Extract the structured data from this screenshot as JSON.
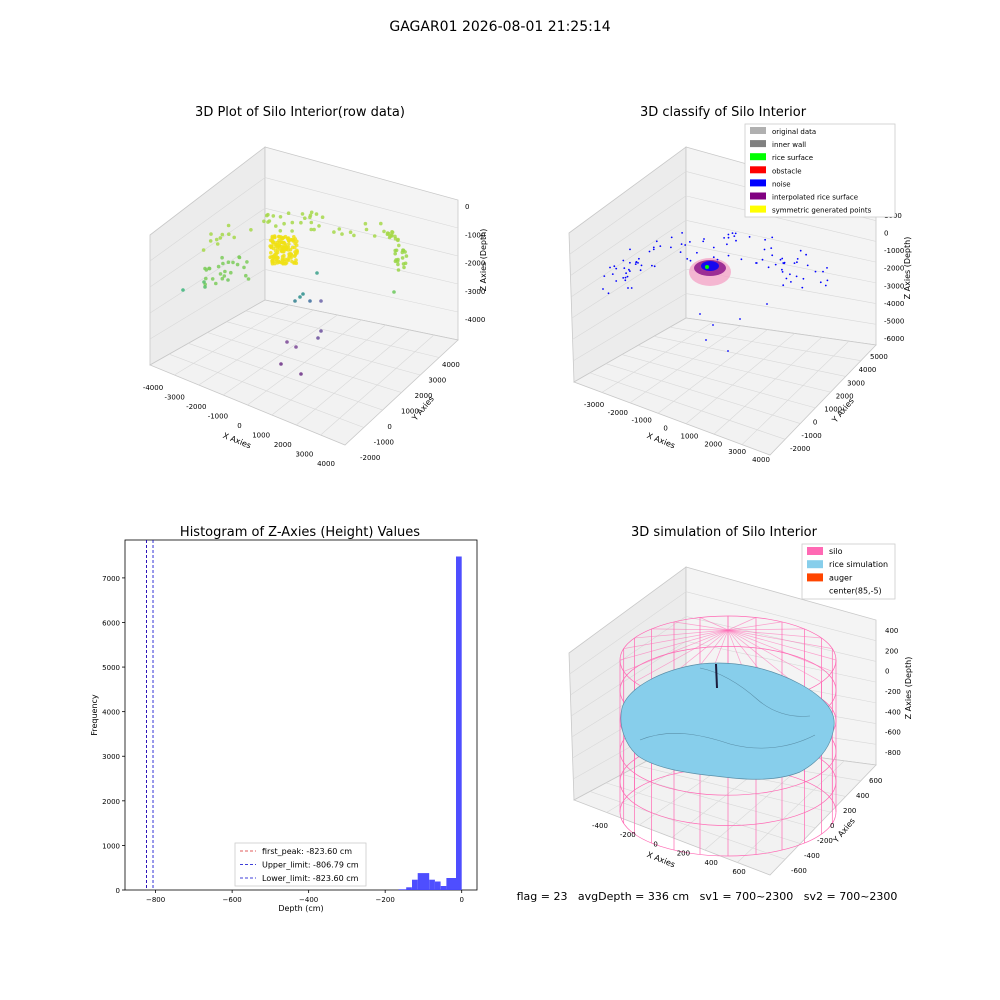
{
  "figure": {
    "suptitle": "GAGAR01 2026-08-01 21:25:14"
  },
  "chart_data": [
    {
      "type": "scatter3d",
      "title": "3D Plot of Silo Interior(row data)",
      "xlabel": "X Axies",
      "ylabel": "Y Axies",
      "zlabel": "Z Axies (Depth)",
      "xlim": [
        -4000,
        4000
      ],
      "ylim": [
        -2000,
        4000
      ],
      "zlim": [
        -4500,
        0
      ],
      "xticks": [
        "-4000",
        "-3000",
        "-2000",
        "-1000",
        "0",
        "1000",
        "2000",
        "3000",
        "4000"
      ],
      "yticks": [
        "-2000",
        "-1000",
        "0",
        "1000",
        "2000",
        "3000",
        "4000"
      ],
      "zticks": [
        "0",
        "-1000",
        "-2000",
        "-3000",
        "-4000"
      ],
      "colormap": "viridis",
      "note_points": "approximate point cloud; dense cluster near x≈-500, y≈1800, z≈-1200; arc of points at z≈-1000 to -2000; outliers down to z≈-4400"
    },
    {
      "type": "scatter3d",
      "title": "3D classify of Silo Interior",
      "xlabel": "X Axies",
      "ylabel": "Y Axies",
      "zlabel": "Z Axies (Depth)",
      "xlim": [
        -3500,
        4000
      ],
      "ylim": [
        -2500,
        5000
      ],
      "zlim": [
        -6000,
        1000
      ],
      "xticks": [
        "-3000",
        "-2000",
        "-1000",
        "0",
        "1000",
        "2000",
        "3000",
        "4000"
      ],
      "yticks": [
        "-2000",
        "-1000",
        "0",
        "1000",
        "2000",
        "3000",
        "4000",
        "5000"
      ],
      "zticks": [
        "1000",
        "0",
        "-1000",
        "-2000",
        "-3000",
        "-4000",
        "-5000",
        "-6000"
      ],
      "legend": {
        "placement": "top-right",
        "entries": [
          {
            "label": "original data",
            "color": "#b0b0b0"
          },
          {
            "label": "inner wall",
            "color": "#808080"
          },
          {
            "label": "rice surface",
            "color": "#00ff00"
          },
          {
            "label": "obstacle",
            "color": "#ff0000"
          },
          {
            "label": "noise",
            "color": "#0000ff"
          },
          {
            "label": "interpolated rice surface",
            "color": "#800080"
          },
          {
            "label": "symmetric generated points",
            "color": "#ffff00"
          }
        ]
      }
    },
    {
      "type": "histogram",
      "title": "Histogram of Z-Axies (Height) Values",
      "xlabel": "Depth (cm)",
      "ylabel": "Frequency",
      "xlim": [
        -880,
        40
      ],
      "ylim": [
        0,
        7850
      ],
      "xticks": [
        -800,
        -600,
        -400,
        -200,
        0
      ],
      "yticks": [
        0,
        1000,
        2000,
        3000,
        4000,
        5000,
        6000,
        7000
      ],
      "bins": [
        {
          "x0": -165,
          "x1": -145,
          "count": 15
        },
        {
          "x0": -145,
          "x1": -130,
          "count": 60
        },
        {
          "x0": -130,
          "x1": -115,
          "count": 230
        },
        {
          "x0": -115,
          "x1": -85,
          "count": 380
        },
        {
          "x0": -85,
          "x1": -70,
          "count": 230
        },
        {
          "x0": -70,
          "x1": -55,
          "count": 190
        },
        {
          "x0": -55,
          "x1": -40,
          "count": 90
        },
        {
          "x0": -40,
          "x1": -15,
          "count": 270
        },
        {
          "x0": -15,
          "x1": 0,
          "count": 7480
        }
      ],
      "bar_color": "#4444ff",
      "lines": [
        {
          "label": "first_peak: -823.60 cm",
          "x": -823.6,
          "color": "#d62728"
        },
        {
          "label": "Upper_limit: -806.79 cm",
          "x": -806.79,
          "color": "#0000cc"
        },
        {
          "label": "Lower_limit: -823.60 cm",
          "x": -823.6,
          "color": "#0000cc"
        }
      ],
      "legend_placement": "lower-center"
    },
    {
      "type": "surface3d",
      "title": "3D simulation of Silo Interior",
      "xlabel": "X Axies",
      "ylabel": "Y Axies",
      "zlabel": "Z Axies (Depth)",
      "xlim": [
        -600,
        700
      ],
      "ylim": [
        -650,
        700
      ],
      "zlim": [
        -950,
        450
      ],
      "xticks": [
        "-400",
        "-200",
        "0",
        "200",
        "400",
        "600"
      ],
      "yticks": [
        "-600",
        "-400",
        "-200",
        "0",
        "200",
        "400",
        "600"
      ],
      "zticks": [
        "400",
        "200",
        "0",
        "-200",
        "-400",
        "-600",
        "-800"
      ],
      "legend": {
        "placement": "top-right",
        "entries": [
          {
            "label": "silo",
            "color": "#ff69b4"
          },
          {
            "label": "rice simulation",
            "color": "#87ceeb"
          },
          {
            "label": "auger",
            "color": "#ff4500"
          },
          {
            "label": "center(85,-5)",
            "color": "#ffffff"
          }
        ]
      }
    }
  ],
  "status_text": "flag = 23   avgDepth = 336 cm   sv1 = 700~2300   sv2 = 700~2300"
}
